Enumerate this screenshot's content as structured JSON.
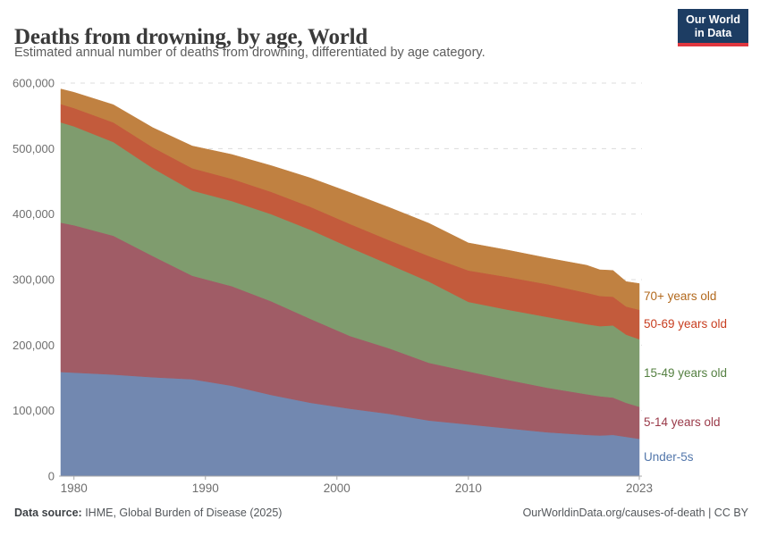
{
  "header": {
    "title": "Deaths from drowning, by age, World",
    "subtitle": "Estimated annual number of deaths from drowning, differentiated by age category.",
    "logo": {
      "line1": "Our World",
      "line2": "in Data"
    }
  },
  "footer": {
    "source_prefix": "Data source:",
    "source_text": " IHME, Global Burden of Disease (2025)",
    "right_text": "OurWorldinData.org/causes-of-death | CC BY"
  },
  "chart_data": {
    "type": "area",
    "stacked": true,
    "title": "Deaths from drowning, by age, World",
    "xlabel": "",
    "ylabel": "",
    "grid": "horizontal-dashed",
    "legend_position": "right",
    "xlim": [
      1979,
      2023
    ],
    "ylim": [
      0,
      600000
    ],
    "x": [
      1979,
      1980,
      1983,
      1986,
      1989,
      1992,
      1995,
      1998,
      2001,
      2004,
      2007,
      2010,
      2013,
      2016,
      2019,
      2020,
      2021,
      2022,
      2023
    ],
    "series": [
      {
        "name": "Under-5s",
        "color": "#7288b0",
        "label_color": "#5377ab",
        "values": [
          159000,
          158000,
          155000,
          151000,
          148000,
          138000,
          124000,
          112000,
          103000,
          95000,
          85000,
          79000,
          73000,
          67000,
          63000,
          62000,
          63000,
          60000,
          57000
        ]
      },
      {
        "name": "5-14 years old",
        "color": "#a05c66",
        "label_color": "#9a3a49",
        "values": [
          228000,
          225000,
          212000,
          185000,
          158000,
          152000,
          143000,
          128000,
          111000,
          100000,
          88000,
          81000,
          74000,
          68000,
          62000,
          60000,
          57000,
          52000,
          49000
        ]
      },
      {
        "name": "15-49 years old",
        "color": "#7f9c6e",
        "label_color": "#558042",
        "values": [
          153000,
          151000,
          143000,
          134000,
          130000,
          130000,
          133000,
          136000,
          135000,
          128000,
          124000,
          106000,
          107000,
          108000,
          107000,
          107000,
          110000,
          104000,
          103000
        ]
      },
      {
        "name": "50-69 years old",
        "color": "#c35b3c",
        "label_color": "#c83e20",
        "values": [
          28000,
          28000,
          30000,
          32000,
          34000,
          34000,
          34000,
          35000,
          36000,
          37000,
          39000,
          48000,
          50000,
          50000,
          48000,
          46000,
          44000,
          43000,
          45000
        ]
      },
      {
        "name": "70+ years old",
        "color": "#c08141",
        "label_color": "#b2691d",
        "values": [
          23000,
          24000,
          27000,
          30000,
          34000,
          37000,
          40000,
          44000,
          48000,
          50000,
          50000,
          42000,
          41000,
          40000,
          42000,
          40000,
          40000,
          38000,
          40000
        ]
      }
    ],
    "yticks": [
      {
        "value": 0,
        "label": "0"
      },
      {
        "value": 100000,
        "label": "100,000"
      },
      {
        "value": 200000,
        "label": "200,000"
      },
      {
        "value": 300000,
        "label": "300,000"
      },
      {
        "value": 400000,
        "label": "400,000"
      },
      {
        "value": 500000,
        "label": "500,000"
      },
      {
        "value": 600000,
        "label": "600,000"
      }
    ],
    "xticks": [
      {
        "year": 1980,
        "label": "1980"
      },
      {
        "year": 1990,
        "label": "1990"
      },
      {
        "year": 2000,
        "label": "2000"
      },
      {
        "year": 2010,
        "label": "2010"
      },
      {
        "year": 2023,
        "label": "2023"
      }
    ]
  }
}
